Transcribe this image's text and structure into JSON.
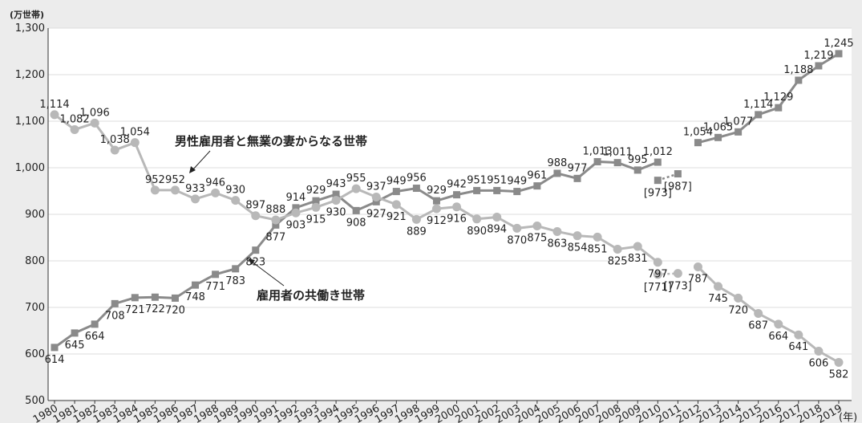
{
  "chart_data": {
    "type": "line",
    "ylabel": "(万世帯)",
    "xlabel": "(年)",
    "ylim": [
      500,
      1300
    ],
    "y_ticks": [
      "500",
      "600",
      "700",
      "800",
      "900",
      "1,000",
      "1,100",
      "1,200",
      "1,300"
    ],
    "y_tick_values": [
      500,
      600,
      700,
      800,
      900,
      1000,
      1100,
      1200,
      1300
    ],
    "categories": [
      "1980",
      "1981",
      "1982",
      "1983",
      "1984",
      "1985",
      "1986",
      "1987",
      "1988",
      "1989",
      "1990",
      "1991",
      "1992",
      "1993",
      "1994",
      "1995",
      "1996",
      "1997",
      "1998",
      "1999",
      "2000",
      "2001",
      "2002",
      "2003",
      "2004",
      "2005",
      "2006",
      "2007",
      "2008",
      "2009",
      "2010",
      "2011",
      "2012",
      "2013",
      "2014",
      "2015",
      "2016",
      "2017",
      "2018",
      "2019"
    ],
    "grid": true,
    "legend": "none",
    "series": [
      {
        "name": "雇用者の共働き世帯",
        "color": "#8a8a8a",
        "marker": "square",
        "values": [
          614,
          645,
          664,
          708,
          721,
          722,
          720,
          748,
          771,
          783,
          823,
          877,
          914,
          929,
          943,
          908,
          927,
          949,
          956,
          929,
          942,
          951,
          951,
          949,
          961,
          988,
          977,
          1013,
          1011,
          995,
          1012,
          null,
          1054,
          1065,
          1077,
          1114,
          1129,
          1188,
          1219,
          1245
        ],
        "labels": [
          "614",
          "645",
          "664",
          "708",
          "721",
          "722",
          "720",
          "748",
          "771",
          "783",
          "823",
          "877",
          "914",
          "929",
          "943",
          "908",
          "927",
          "949",
          "956",
          "929",
          "942",
          "951",
          "951",
          "949",
          "961",
          "988",
          "977",
          "1,013",
          "1,011",
          "995",
          "1,012",
          "",
          "1,054",
          "1,065",
          "1,077",
          "1,114",
          "1,129",
          "1,188",
          "1,219",
          "1,245"
        ],
        "extra_points": [
          {
            "x": "2010",
            "value": 973,
            "label": "[973]"
          },
          {
            "x": "2011",
            "value": 987,
            "label": "[987]"
          }
        ]
      },
      {
        "name": "男性雇用者と無業の妻からなる世帯",
        "color": "#b8b8b8",
        "marker": "circle",
        "values": [
          1114,
          1082,
          1096,
          1038,
          1054,
          952,
          952,
          933,
          946,
          930,
          897,
          888,
          903,
          915,
          930,
          955,
          937,
          921,
          889,
          912,
          916,
          890,
          894,
          870,
          875,
          863,
          854,
          851,
          825,
          831,
          797,
          null,
          787,
          745,
          720,
          687,
          664,
          641,
          606,
          582
        ],
        "labels": [
          "1,114",
          "1,082",
          "1,096",
          "1,038",
          "1,054",
          "952",
          "952",
          "933",
          "946",
          "930",
          "897",
          "888",
          "903",
          "915",
          "930",
          "955",
          "937",
          "921",
          "889",
          "912",
          "916",
          "890",
          "894",
          "870",
          "875",
          "863",
          "854",
          "851",
          "825",
          "831",
          "797",
          "",
          "787",
          "745",
          "720",
          "687",
          "664",
          "641",
          "606",
          "582"
        ],
        "extra_points": [
          {
            "x": "2010",
            "value": 771,
            "label": "[771]"
          },
          {
            "x": "2011",
            "value": 773,
            "label": "[773]"
          }
        ]
      }
    ]
  }
}
